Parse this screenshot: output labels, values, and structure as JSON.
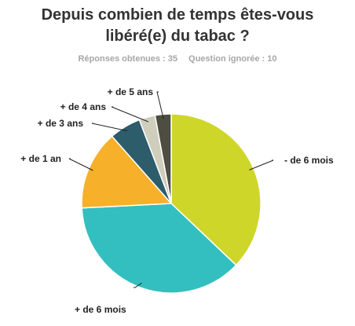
{
  "chart_data": {
    "type": "pie",
    "title": "Depuis combien de temps êtes-vous libéré(e) du tabac ?",
    "title_lines": [
      "Depuis combien de temps êtes-vous",
      "libéré(e) du tabac ?"
    ],
    "responses_text": "Réponses obtenues : 35",
    "skipped_text": "Question ignorée : 10",
    "slices": [
      {
        "label": "- de 6 mois",
        "value": 37.1,
        "color": "#cfd62a"
      },
      {
        "label": "+ de 6 mois",
        "value": 37.1,
        "color": "#33bfbf"
      },
      {
        "label": "+ de 1 an",
        "value": 14.3,
        "color": "#f7b02a"
      },
      {
        "label": "+ de 3 ans",
        "value": 5.7,
        "color": "#2d5c6b"
      },
      {
        "label": "+ de 4 ans",
        "value": 2.9,
        "color": "#cfcdbc"
      },
      {
        "label": "+ de 5 ans",
        "value": 2.9,
        "color": "#4d4d42"
      }
    ]
  }
}
